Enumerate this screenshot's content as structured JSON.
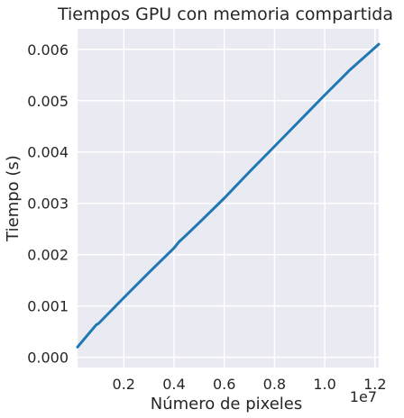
{
  "chart_data": {
    "type": "line",
    "title": "Tiempos GPU con memoria compartida",
    "xlabel": "Número de pixeles",
    "ylabel": "Tiempo (s)",
    "x_offset_label": "1e7",
    "xlim": [
      160000,
      12150000
    ],
    "ylim": [
      -0.0002,
      0.0064
    ],
    "x_ticks": [
      2000000,
      4000000,
      6000000,
      8000000,
      10000000,
      12000000
    ],
    "x_tick_labels": [
      "0.2",
      "0.4",
      "0.6",
      "0.8",
      "1.0",
      "1.2"
    ],
    "y_ticks": [
      0,
      0.001,
      0.002,
      0.003,
      0.004,
      0.005,
      0.006
    ],
    "y_tick_labels": [
      "0.000",
      "0.001",
      "0.002",
      "0.003",
      "0.004",
      "0.005",
      "0.006"
    ],
    "grid": true,
    "legend": "none",
    "colors": {
      "background": "#eaeaf2",
      "grid": "#ffffff",
      "line": "#1f77b4"
    },
    "series": [
      {
        "x": [
          160000,
          500000,
          900000,
          1000000,
          2000000,
          3000000,
          4000000,
          4200000,
          4400000,
          5000000,
          6000000,
          7000000,
          8000000,
          9000000,
          10000000,
          11000000,
          12150000
        ],
        "y": [
          0.0002,
          0.0004,
          0.00063,
          0.00066,
          0.00116,
          0.00165,
          0.00213,
          0.00225,
          0.00234,
          0.00262,
          0.0031,
          0.00361,
          0.00411,
          0.00461,
          0.00511,
          0.0056,
          0.0061
        ]
      }
    ]
  }
}
